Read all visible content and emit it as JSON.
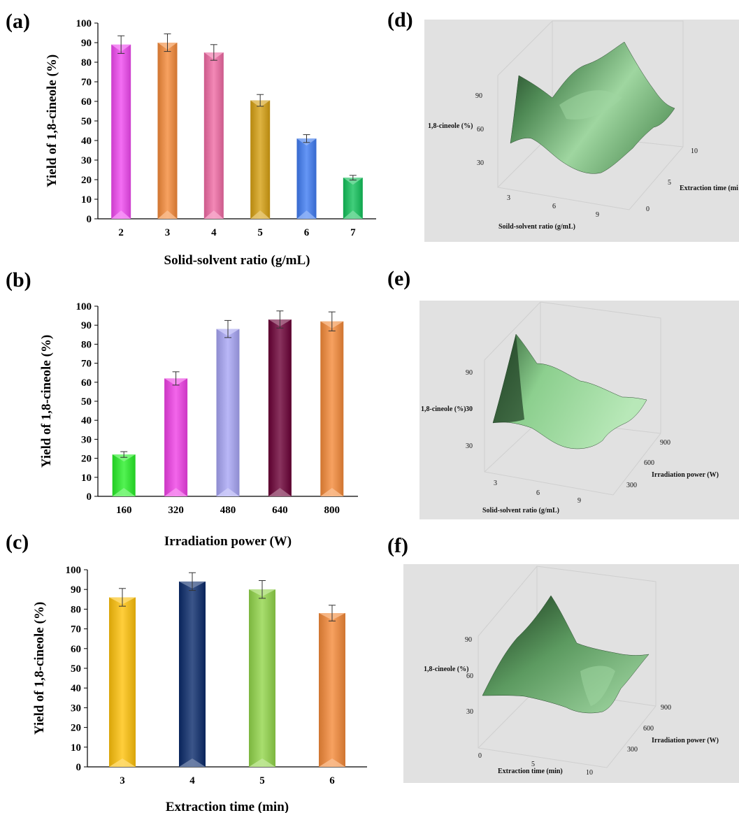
{
  "chart_data": [
    {
      "panel": "(a)",
      "type": "bar",
      "categories": [
        "2",
        "3",
        "4",
        "5",
        "6",
        "7"
      ],
      "values": [
        89,
        90,
        85,
        60.5,
        41,
        21
      ],
      "errors": [
        4.5,
        4.5,
        4,
        3,
        2,
        1.2
      ],
      "colors": [
        "#f048f0",
        "#f58a38",
        "#f06aa4",
        "#d6a012",
        "#3f7cf2",
        "#12c25a"
      ],
      "xlabel": "Solid-solvent ratio (g/mL)",
      "ylabel": "Yield of 1,8-cineole (%)",
      "ylim": [
        0,
        100
      ],
      "yticks": [
        0,
        10,
        20,
        30,
        40,
        50,
        60,
        70,
        80,
        90,
        100
      ]
    },
    {
      "panel": "(b)",
      "type": "bar",
      "categories": [
        "160",
        "320",
        "480",
        "640",
        "800"
      ],
      "values": [
        22,
        62,
        88,
        93,
        92
      ],
      "errors": [
        1.5,
        3.5,
        4.5,
        4.5,
        5
      ],
      "colors": [
        "#28f028",
        "#f040e6",
        "#a7a5f5",
        "#6b0036",
        "#f58a38"
      ],
      "xlabel": "Irradiation power (W)",
      "ylabel": "Yield of 1,8-cineole (%)",
      "ylim": [
        0,
        100
      ],
      "yticks": [
        0,
        10,
        20,
        30,
        40,
        50,
        60,
        70,
        80,
        90,
        100
      ]
    },
    {
      "panel": "(c)",
      "type": "bar",
      "categories": [
        "3",
        "4",
        "5",
        "6"
      ],
      "values": [
        86,
        94,
        90,
        78
      ],
      "errors": [
        4.5,
        4.5,
        4.5,
        4
      ],
      "colors": [
        "#ffc20a",
        "#0a2a6b",
        "#92d64a",
        "#f58a38"
      ],
      "xlabel": "Extraction time (min)",
      "ylabel": "Yield of 1,8-cineole (%)",
      "ylim": [
        0,
        100
      ],
      "yticks": [
        0,
        10,
        20,
        30,
        40,
        50,
        60,
        70,
        80,
        90,
        100
      ]
    },
    {
      "panel": "(d)",
      "type": "surface",
      "zlabel": "1,8-cineole (%)",
      "zticks": [
        "90",
        "60",
        "30"
      ],
      "xlabel": "Soild-solvent ratio (g/mL)",
      "xticks": [
        "3",
        "6",
        "9"
      ],
      "ylabel": "Extraction time (mi",
      "yticks": [
        "0",
        "5",
        "10"
      ]
    },
    {
      "panel": "(e)",
      "type": "surface",
      "zlabel": "1,8-cineole (%)",
      "zticks": [
        "90",
        "30",
        "30"
      ],
      "xlabel": "Solid-solvent ratio (g/mL)",
      "xticks": [
        "3",
        "6",
        "9"
      ],
      "ylabel": "Irradiation power (W)",
      "yticks": [
        "300",
        "600",
        "900"
      ]
    },
    {
      "panel": "(f)",
      "type": "surface",
      "zlabel": "1,8-cineole (%)",
      "zticks": [
        "90",
        "60",
        "30"
      ],
      "xlabel": "Extraction time (min)",
      "xticks": [
        "0",
        "5",
        "10"
      ],
      "ylabel": "Irradiation power (W)",
      "yticks": [
        "300",
        "600",
        "900"
      ]
    }
  ],
  "colors": {
    "panel_bg_3d": "#e1e1e1",
    "surface_dark": "#1f3f24",
    "surface_light": "#b6e3b7"
  }
}
